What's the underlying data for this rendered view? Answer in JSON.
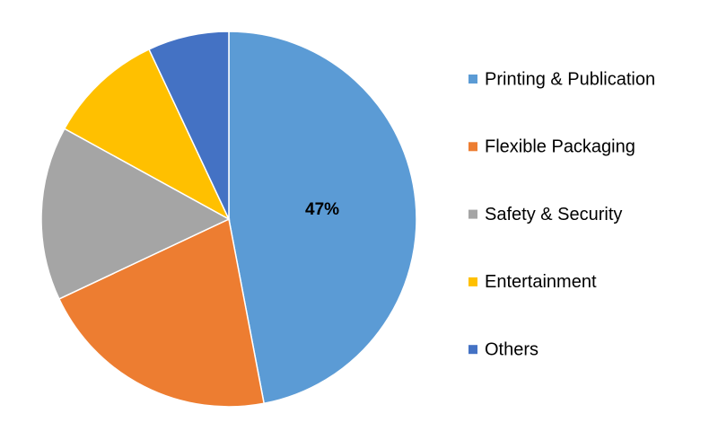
{
  "chart_data": {
    "type": "pie",
    "categories": [
      "Printing & Publication",
      "Flexible Packaging",
      "Safety & Security",
      "Entertainment",
      "Others"
    ],
    "values": [
      47,
      21,
      15,
      10,
      7
    ],
    "value_labels": [
      "47%",
      null,
      null,
      null,
      null
    ],
    "colors": [
      "#5b9bd5",
      "#ed7d31",
      "#a5a5a5",
      "#ffc000",
      "#4472c4"
    ],
    "legend": "right"
  }
}
